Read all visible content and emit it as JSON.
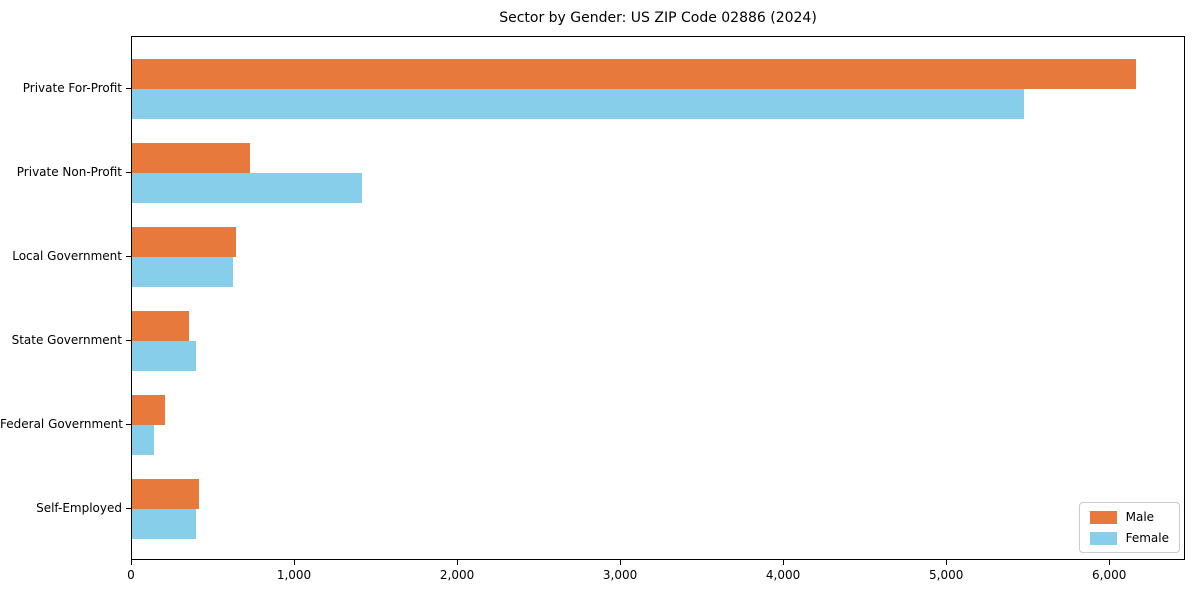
{
  "title": "Sector by Gender: US ZIP Code 02886 (2024)",
  "colors": {
    "male": "#E8793C",
    "female": "#87CEEB",
    "axis": "#000000",
    "legend_border": "#cccccc",
    "background": "#ffffff"
  },
  "legend": {
    "position": "lower right",
    "items": [
      {
        "label": "Male",
        "color": "#E8793C"
      },
      {
        "label": "Female",
        "color": "#87CEEB"
      }
    ]
  },
  "chart_data": {
    "type": "bar",
    "orientation": "horizontal",
    "title": "Sector by Gender: US ZIP Code 02886 (2024)",
    "xlabel": "",
    "ylabel": "",
    "grid": false,
    "categories": [
      "Private For-Profit",
      "Private Non-Profit",
      "Local Government",
      "State Government",
      "Federal Government",
      "Self-Employed"
    ],
    "series": [
      {
        "name": "Male",
        "color": "#E8793C",
        "values": [
          6160,
          725,
          640,
          350,
          205,
          410
        ]
      },
      {
        "name": "Female",
        "color": "#87CEEB",
        "values": [
          5470,
          1410,
          620,
          390,
          135,
          395
        ]
      }
    ],
    "xlim": [
      0,
      6465
    ],
    "xticks": [
      0,
      1000,
      2000,
      3000,
      4000,
      5000,
      6000
    ],
    "xtick_labels": [
      "0",
      "1,000",
      "2,000",
      "3,000",
      "4,000",
      "5,000",
      "6,000"
    ],
    "legend_position": "lower right"
  }
}
